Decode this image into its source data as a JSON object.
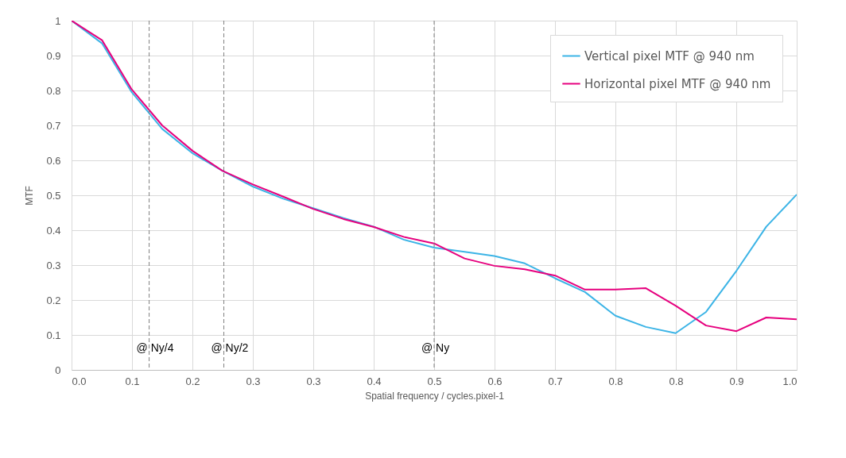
{
  "chart_data": {
    "type": "line",
    "xlabel": "Spatial frequency / cycles.pixel-1",
    "ylabel": "MTF",
    "x": [
      0,
      0.042,
      0.083,
      0.125,
      0.167,
      0.208,
      0.25,
      0.292,
      0.333,
      0.375,
      0.417,
      0.458,
      0.5,
      0.542,
      0.583,
      0.625,
      0.667,
      0.708,
      0.75,
      0.792,
      0.833,
      0.875,
      0.917,
      0.958,
      1
    ],
    "series": [
      {
        "name": "Vertical pixel MTF @ 940 nm",
        "color": "#3cb4e6",
        "values": [
          1,
          0.935,
          0.795,
          0.69,
          0.62,
          0.57,
          0.525,
          0.49,
          0.463,
          0.435,
          0.41,
          0.373,
          0.35,
          0.338,
          0.326,
          0.305,
          0.262,
          0.223,
          0.155,
          0.123,
          0.105,
          0.166,
          0.284,
          0.41,
          0.502
        ]
      },
      {
        "name": "Horizontal pixel MTF @ 940 nm",
        "color": "#e6007e",
        "values": [
          1,
          0.944,
          0.803,
          0.7,
          0.627,
          0.57,
          0.531,
          0.496,
          0.461,
          0.432,
          0.409,
          0.381,
          0.362,
          0.319,
          0.298,
          0.288,
          0.27,
          0.23,
          0.23,
          0.234,
          0.184,
          0.127,
          0.111,
          0.15,
          0.145
        ]
      }
    ],
    "xlim": [
      0,
      1
    ],
    "xticks": [
      {
        "value": 0,
        "label": "0.0"
      },
      {
        "value": 0.0833,
        "label": "0.1"
      },
      {
        "value": 0.1667,
        "label": "0.2"
      },
      {
        "value": 0.25,
        "label": "0.3"
      },
      {
        "value": 0.3333,
        "label": "0.3"
      },
      {
        "value": 0.4167,
        "label": "0.4"
      },
      {
        "value": 0.5,
        "label": "0.5"
      },
      {
        "value": 0.5833,
        "label": "0.6"
      },
      {
        "value": 0.6667,
        "label": "0.7"
      },
      {
        "value": 0.75,
        "label": "0.8"
      },
      {
        "value": 0.8333,
        "label": "0.8"
      },
      {
        "value": 0.9167,
        "label": "0.9"
      },
      {
        "value": 1,
        "label": "1.0"
      }
    ],
    "ylim": [
      0,
      1
    ],
    "yticks": [
      0,
      0.1,
      0.2,
      0.3,
      0.4,
      0.5,
      0.6,
      0.7,
      0.8,
      0.9,
      1
    ],
    "ref_lines": [
      {
        "axis": "x",
        "value": 0.107,
        "label": "@ Ny/4",
        "color": "#808080",
        "line_style": "dashed"
      },
      {
        "axis": "x",
        "value": 0.21,
        "label": "@ Ny/2",
        "color": "#808080",
        "line_style": "dashed"
      },
      {
        "axis": "x",
        "value": 0.5,
        "label": "@ Ny",
        "color": "#808080",
        "line_style": "dashed"
      }
    ],
    "grid": true,
    "legend": "top right",
    "line_style": "solid",
    "marker": "none"
  }
}
